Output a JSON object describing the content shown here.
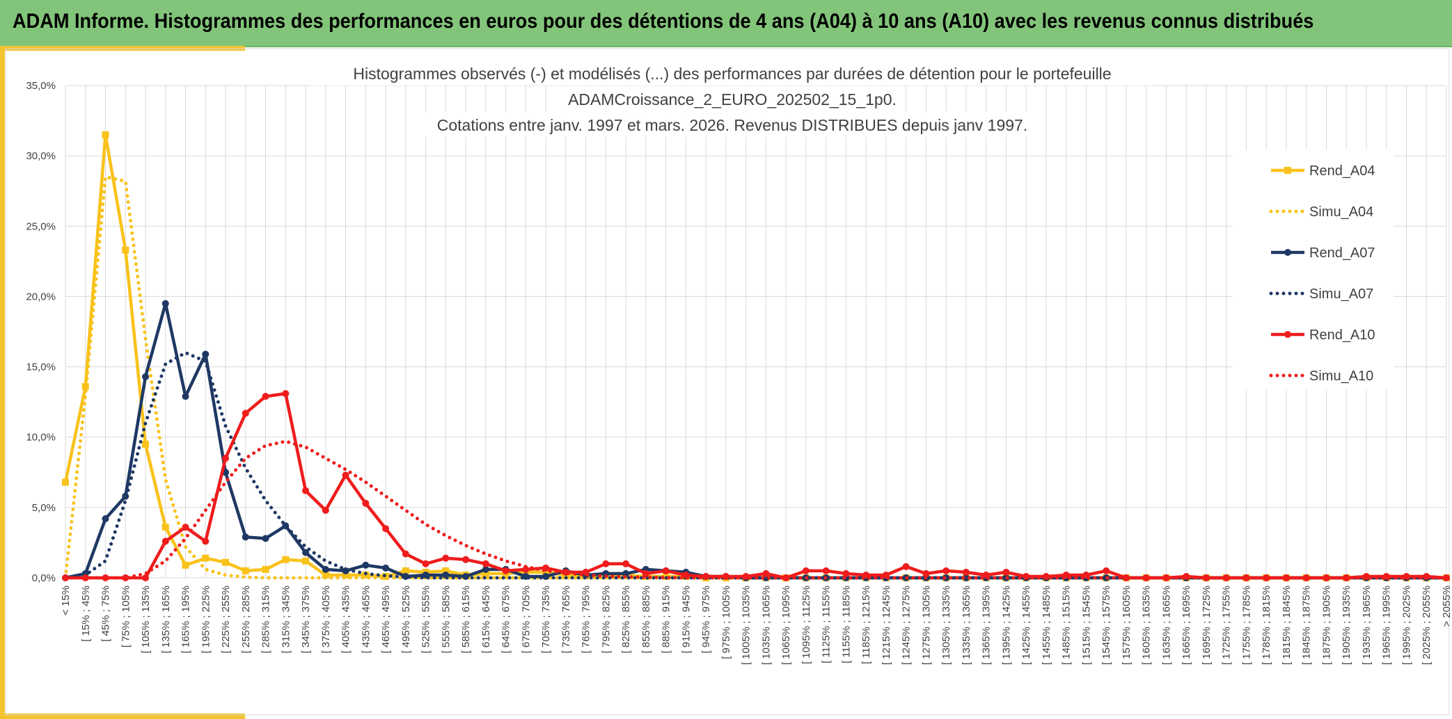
{
  "banner": {
    "title": "ADAM Informe. Histogrammes des performances en euros pour des détentions de 4 ans (A04) à 10 ans (A10) avec les revenus connus distribués"
  },
  "colors": {
    "banner": "#82c57a",
    "accent": "#f4c430",
    "a04": "#f9c21a",
    "a07": "#1f3864",
    "a10": "#ee1c1c",
    "grid": "#d9d9d9"
  },
  "chart_data": {
    "type": "line",
    "title_lines": [
      "Histogrammes observés (-) et modélisés (...) des performances par durées de détention pour le portefeuille",
      "ADAMCroissance_2_EURO_202502_15_1p0.",
      "Cotations entre janv. 1997 et mars. 2026. Revenus DISTRIBUES depuis janv 1997."
    ],
    "ylim": [
      0,
      0.35
    ],
    "ytick_labels": [
      "0,0%",
      "5,0%",
      "10,0%",
      "15,0%",
      "20,0%",
      "25,0%",
      "30,0%",
      "35,0%"
    ],
    "grid": true,
    "legend_position": "right",
    "categories": [
      "< 15%",
      "[ 15% ; 45%",
      "[ 45% ; 75%",
      "[ 75% ; 105%",
      "[ 105% ; 135%",
      "[ 135% ; 165%",
      "[ 165% ; 195%",
      "[ 195% ; 225%",
      "[ 225% ; 255%",
      "[ 255% ; 285%",
      "[ 285% ; 315%",
      "[ 315% ; 345%",
      "[ 345% ; 375%",
      "[ 375% ; 405%",
      "[ 405% ; 435%",
      "[ 435% ; 465%",
      "[ 465% ; 495%",
      "[ 495% ; 525%",
      "[ 525% ; 555%",
      "[ 555% ; 585%",
      "[ 585% ; 615%",
      "[ 615% ; 645%",
      "[ 645% ; 675%",
      "[ 675% ; 705%",
      "[ 705% ; 735%",
      "[ 735% ; 765%",
      "[ 765% ; 795%",
      "[ 795% ; 825%",
      "[ 825% ; 855%",
      "[ 855% ; 885%",
      "[ 885% ; 915%",
      "[ 915% ; 945%",
      "[ 945% ; 975%",
      "[ 975% ; 1005%",
      "[ 1005% ; 1035%",
      "[ 1035% ; 1065%",
      "[ 1065% ; 1095%",
      "[ 1095% ; 1125%",
      "[ 1125% ; 1155%",
      "[ 1155% ; 1185%",
      "[ 1185% ; 1215%",
      "[ 1215% ; 1245%",
      "[ 1245% ; 1275%",
      "[ 1275% ; 1305%",
      "[ 1305% ; 1335%",
      "[ 1335% ; 1365%",
      "[ 1365% ; 1395%",
      "[ 1395% ; 1425%",
      "[ 1425% ; 1455%",
      "[ 1455% ; 1485%",
      "[ 1485% ; 1515%",
      "[ 1515% ; 1545%",
      "[ 1545% ; 1575%",
      "[ 1575% ; 1605%",
      "[ 1605% ; 1635%",
      "[ 1635% ; 1665%",
      "[ 1665% ; 1695%",
      "[ 1695% ; 1725%",
      "[ 1725% ; 1755%",
      "[ 1755% ; 1785%",
      "[ 1785% ; 1815%",
      "[ 1815% ; 1845%",
      "[ 1845% ; 1875%",
      "[ 1875% ; 1905%",
      "[ 1905% ; 1935%",
      "[ 1935% ; 1965%",
      "[ 1965% ; 1995%",
      "[ 1995% ; 2025%",
      "[ 2025% ; 2055%",
      "> 2055%"
    ],
    "series": [
      {
        "name": "Rend_A04",
        "style": "solid",
        "marker": "square",
        "color": "#f9c21a",
        "values": [
          0.068,
          0.136,
          0.315,
          0.233,
          0.095,
          0.036,
          0.009,
          0.014,
          0.011,
          0.005,
          0.006,
          0.013,
          0.012,
          0.002,
          0.002,
          0.002,
          0.001,
          0.005,
          0.004,
          0.005,
          0.002,
          0.003,
          0.003,
          0.004,
          0.004,
          0.002,
          0.002,
          0.002,
          0.002,
          0.001,
          0.001,
          0.001,
          0.0,
          0.0,
          0.0,
          0.0,
          0.0,
          0.0,
          0.0,
          0.0,
          0.0,
          0.0,
          0.0,
          0.0,
          0.0,
          0.0,
          0.0,
          0.0,
          0.0,
          0.0,
          0.0,
          0.0,
          0.0,
          0.0,
          0.0,
          0.0,
          0.0,
          0.0,
          0.0,
          0.0,
          0.0,
          0.0,
          0.0,
          0.0,
          0.0,
          0.0,
          0.0,
          0.0,
          0.0,
          0.0
        ]
      },
      {
        "name": "Simu_A04",
        "style": "dotted",
        "marker": "none",
        "color": "#f9c21a",
        "values": [
          0.0,
          0.13,
          0.285,
          0.282,
          0.17,
          0.07,
          0.022,
          0.006,
          0.002,
          0.0005,
          0.0,
          0.0,
          0.0,
          0.0,
          0.0,
          0.0,
          0.0,
          0.0,
          0.0,
          0.0,
          0.0,
          0.0,
          0.0,
          0.0,
          0.0,
          0.0,
          0.0,
          0.0,
          0.0,
          0.0,
          0.0,
          0.0,
          0.0,
          0.0,
          0.0,
          0.0,
          0.0,
          0.0,
          0.0,
          0.0,
          0.0,
          0.0,
          0.0,
          0.0,
          0.0,
          0.0,
          0.0,
          0.0,
          0.0,
          0.0,
          0.0,
          0.0,
          0.0,
          0.0,
          0.0,
          0.0,
          0.0,
          0.0,
          0.0,
          0.0,
          0.0,
          0.0,
          0.0,
          0.0,
          0.0,
          0.0,
          0.0,
          0.0,
          0.0,
          0.0
        ]
      },
      {
        "name": "Rend_A07",
        "style": "solid",
        "marker": "circle",
        "color": "#1f3864",
        "values": [
          0.0,
          0.003,
          0.042,
          0.058,
          0.143,
          0.195,
          0.129,
          0.159,
          0.075,
          0.029,
          0.028,
          0.037,
          0.018,
          0.006,
          0.005,
          0.009,
          0.007,
          0.001,
          0.002,
          0.002,
          0.001,
          0.006,
          0.006,
          0.001,
          0.001,
          0.005,
          0.002,
          0.003,
          0.003,
          0.006,
          0.005,
          0.004,
          0.001,
          0.001,
          0.0,
          0.0,
          0.0,
          0.0,
          0.0,
          0.0,
          0.0,
          0.0,
          0.0,
          0.0,
          0.0,
          0.0,
          0.0,
          0.0,
          0.0,
          0.0,
          0.0,
          0.0,
          0.0,
          0.0,
          0.0,
          0.0,
          0.0,
          0.0,
          0.0,
          0.0,
          0.0,
          0.0,
          0.0,
          0.0,
          0.0,
          0.0,
          0.0,
          0.0,
          0.0,
          0.0
        ]
      },
      {
        "name": "Simu_A07",
        "style": "dotted",
        "marker": "none",
        "color": "#1f3864",
        "values": [
          0.0,
          0.002,
          0.012,
          0.055,
          0.11,
          0.152,
          0.16,
          0.154,
          0.108,
          0.078,
          0.055,
          0.037,
          0.022,
          0.012,
          0.006,
          0.003,
          0.0015,
          0.0005,
          0.0,
          0.0,
          0.0,
          0.0,
          0.0,
          0.0,
          0.0,
          0.0,
          0.0,
          0.0,
          0.0,
          0.0,
          0.0,
          0.0,
          0.0,
          0.0,
          0.0,
          0.0,
          0.0,
          0.0,
          0.0,
          0.0,
          0.0,
          0.0,
          0.0,
          0.0,
          0.0,
          0.0,
          0.0,
          0.0,
          0.0,
          0.0,
          0.0,
          0.0,
          0.0,
          0.0,
          0.0,
          0.0,
          0.0,
          0.0,
          0.0,
          0.0,
          0.0,
          0.0,
          0.0,
          0.0,
          0.0,
          0.0,
          0.0,
          0.0,
          0.0,
          0.0
        ]
      },
      {
        "name": "Rend_A10",
        "style": "solid",
        "marker": "circle",
        "color": "#ee1c1c",
        "values": [
          0.0,
          0.0,
          0.0,
          0.0,
          0.0,
          0.026,
          0.036,
          0.026,
          0.085,
          0.117,
          0.129,
          0.131,
          0.062,
          0.048,
          0.073,
          0.053,
          0.035,
          0.017,
          0.01,
          0.014,
          0.013,
          0.01,
          0.005,
          0.006,
          0.007,
          0.004,
          0.004,
          0.01,
          0.01,
          0.003,
          0.005,
          0.002,
          0.001,
          0.001,
          0.001,
          0.003,
          0.0,
          0.005,
          0.005,
          0.003,
          0.002,
          0.002,
          0.008,
          0.003,
          0.005,
          0.004,
          0.002,
          0.004,
          0.001,
          0.001,
          0.002,
          0.002,
          0.005,
          0.0,
          0.0,
          0.0,
          0.001,
          0.0,
          0.0,
          0.0,
          0.0,
          0.0,
          0.0,
          0.0,
          0.0,
          0.001,
          0.001,
          0.001,
          0.001,
          0.0
        ]
      },
      {
        "name": "Simu_A10",
        "style": "dotted",
        "marker": "none",
        "color": "#ee1c1c",
        "values": [
          0.0,
          0.0,
          0.0,
          0.0,
          0.003,
          0.012,
          0.028,
          0.048,
          0.068,
          0.085,
          0.094,
          0.097,
          0.093,
          0.085,
          0.077,
          0.068,
          0.058,
          0.048,
          0.038,
          0.03,
          0.023,
          0.017,
          0.012,
          0.008,
          0.005,
          0.0035,
          0.002,
          0.0012,
          0.0008,
          0.0004,
          0.0002,
          0.0,
          0.0,
          0.0,
          0.0,
          0.0,
          0.0,
          0.0,
          0.0,
          0.0,
          0.0,
          0.0,
          0.0,
          0.0,
          0.0,
          0.0,
          0.0,
          0.0,
          0.0,
          0.0,
          0.0,
          0.0,
          0.0,
          0.0,
          0.0,
          0.0,
          0.0,
          0.0,
          0.0,
          0.0,
          0.0,
          0.0,
          0.0,
          0.0,
          0.0,
          0.0,
          0.0,
          0.0,
          0.0,
          0.0
        ]
      }
    ]
  }
}
